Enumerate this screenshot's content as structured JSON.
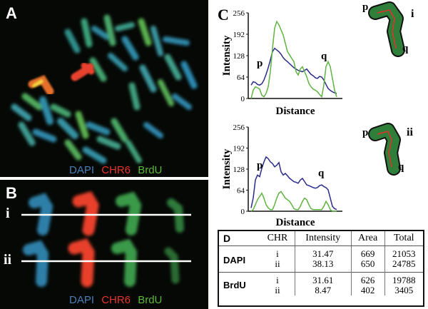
{
  "panel_a": {
    "label": "A",
    "legend": [
      {
        "text": "DAPI",
        "color": "#4a7fb5"
      },
      {
        "text": "CHR6",
        "color": "#e8352a"
      },
      {
        "text": "BrdU",
        "color": "#5cb83a"
      }
    ]
  },
  "panel_b": {
    "label": "B",
    "rows": [
      "i",
      "ii"
    ],
    "legend": [
      {
        "text": "DAPI",
        "color": "#4a7fb5"
      },
      {
        "text": "CHR6",
        "color": "#e8352a"
      },
      {
        "text": "BrdU",
        "color": "#5cb83a"
      }
    ]
  },
  "panel_c": {
    "label": "C",
    "colors": {
      "dapi": "#2b2b8c",
      "brdu": "#5fb340"
    }
  },
  "chart_data": [
    {
      "type": "line",
      "title": "",
      "panel_row": "i",
      "xlabel": "Distance",
      "ylabel": "Intensity",
      "ylim": [
        0,
        256
      ],
      "yticks": [
        0,
        64,
        128,
        192,
        256
      ],
      "x": [
        0,
        1,
        2,
        3,
        4,
        5,
        6,
        7,
        8,
        9,
        10,
        11,
        12,
        13,
        14,
        15,
        16,
        17,
        18,
        19,
        20,
        21,
        22,
        23,
        24,
        25,
        26,
        27,
        28,
        29,
        30,
        31,
        32,
        33,
        34,
        35,
        36,
        37,
        38,
        39,
        40
      ],
      "series": [
        {
          "name": "DAPI",
          "values": [
            40,
            50,
            48,
            42,
            40,
            44,
            55,
            72,
            92,
            115,
            140,
            150,
            145,
            140,
            132,
            122,
            115,
            110,
            104,
            98,
            92,
            88,
            84,
            82,
            80,
            84,
            88,
            80,
            72,
            68,
            62,
            60,
            66,
            64,
            55,
            42,
            30,
            24,
            20,
            17,
            15
          ]
        },
        {
          "name": "BrdU",
          "values": [
            0,
            25,
            35,
            32,
            28,
            10,
            5,
            15,
            35,
            80,
            150,
            210,
            230,
            220,
            205,
            190,
            165,
            140,
            130,
            120,
            110,
            80,
            70,
            88,
            95,
            80,
            65,
            45,
            35,
            28,
            25,
            20,
            12,
            5,
            40,
            95,
            110,
            95,
            60,
            25,
            5
          ]
        }
      ],
      "annotations": [
        "p",
        "q"
      ],
      "inset": {
        "arm_labels": [
          "p",
          "q"
        ],
        "index": "i"
      }
    },
    {
      "type": "line",
      "title": "",
      "panel_row": "ii",
      "xlabel": "Distance",
      "ylabel": "Intensity",
      "ylim": [
        0,
        256
      ],
      "yticks": [
        0,
        64,
        128,
        192,
        256
      ],
      "x": [
        0,
        1,
        2,
        3,
        4,
        5,
        6,
        7,
        8,
        9,
        10,
        11,
        12,
        13,
        14,
        15,
        16,
        17,
        18,
        19,
        20,
        21,
        22,
        23,
        24,
        25,
        26,
        27,
        28,
        29,
        30,
        31,
        32,
        33,
        34,
        35,
        36,
        37,
        38,
        39,
        40
      ],
      "series": [
        {
          "name": "DAPI",
          "values": [
            10,
            40,
            95,
            110,
            105,
            130,
            150,
            165,
            160,
            150,
            145,
            135,
            140,
            148,
            120,
            110,
            115,
            108,
            100,
            95,
            90,
            88,
            85,
            95,
            100,
            90,
            80,
            78,
            75,
            72,
            70,
            72,
            78,
            80,
            75,
            72,
            65,
            40,
            15,
            8,
            5
          ]
        },
        {
          "name": "BrdU",
          "values": [
            0,
            5,
            20,
            35,
            45,
            55,
            40,
            20,
            10,
            5,
            5,
            20,
            40,
            55,
            60,
            50,
            40,
            35,
            30,
            20,
            8,
            5,
            5,
            15,
            30,
            40,
            35,
            20,
            8,
            5,
            5,
            5,
            5,
            5,
            15,
            30,
            20,
            5,
            0,
            0,
            0
          ]
        }
      ],
      "annotations": [
        "p",
        "q"
      ],
      "inset": {
        "arm_labels": [
          "p",
          "q"
        ],
        "index": "ii"
      }
    }
  ],
  "panel_d": {
    "label": "D",
    "headers": [
      "CHR",
      "Intensity",
      "Area",
      "Total"
    ],
    "groups": [
      {
        "name": "DAPI",
        "rows": [
          {
            "chr": "i",
            "intensity": "31.47",
            "area": "669",
            "total": "21053"
          },
          {
            "chr": "ii",
            "intensity": "38.13",
            "area": "650",
            "total": "24785"
          }
        ]
      },
      {
        "name": "BrdU",
        "rows": [
          {
            "chr": "i",
            "intensity": "31.61",
            "area": "626",
            "total": "19788"
          },
          {
            "chr": "ii",
            "intensity": "8.47",
            "area": "402",
            "total": "3405"
          }
        ]
      }
    ]
  }
}
